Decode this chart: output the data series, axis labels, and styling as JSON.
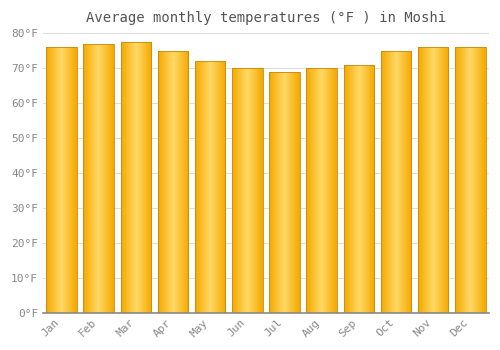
{
  "title": "Average monthly temperatures (°F ) in Moshi",
  "months": [
    "Jan",
    "Feb",
    "Mar",
    "Apr",
    "May",
    "Jun",
    "Jul",
    "Aug",
    "Sep",
    "Oct",
    "Nov",
    "Dec"
  ],
  "values": [
    76,
    77,
    77.5,
    75,
    72,
    70,
    69,
    70,
    71,
    75,
    76,
    76
  ],
  "bar_color_left": "#F5A800",
  "bar_color_center": "#FFD966",
  "bar_color_right": "#F5A800",
  "bar_edge_color": "#C8880A",
  "background_color": "#FFFFFF",
  "plot_bg_color": "#FFFFFF",
  "grid_color": "#DDDDDD",
  "ylim": [
    0,
    80
  ],
  "yticks": [
    0,
    10,
    20,
    30,
    40,
    50,
    60,
    70,
    80
  ],
  "ytick_labels": [
    "0°F",
    "10°F",
    "20°F",
    "30°F",
    "40°F",
    "50°F",
    "60°F",
    "70°F",
    "80°F"
  ],
  "title_fontsize": 10,
  "tick_fontsize": 8,
  "bar_width": 0.82
}
